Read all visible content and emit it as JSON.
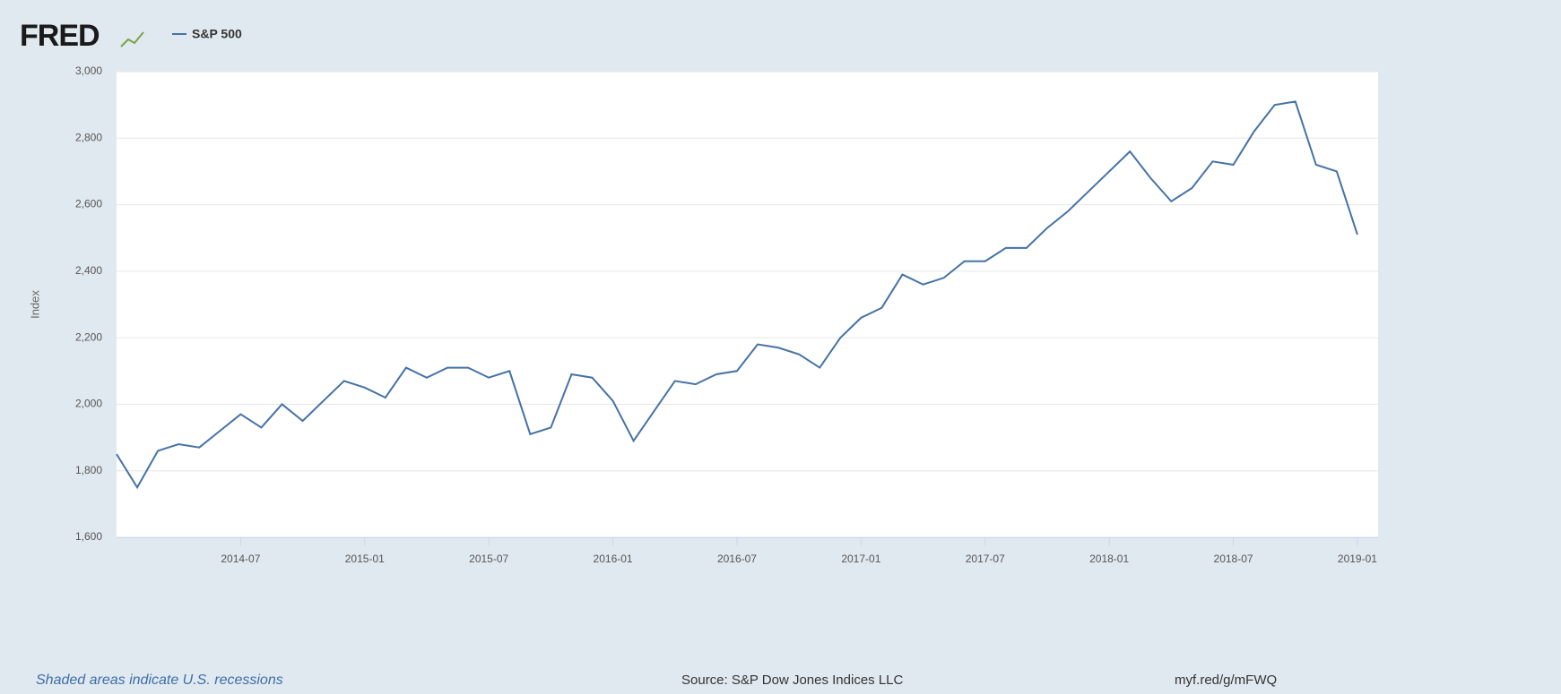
{
  "logo": "FRED",
  "chart_data": {
    "type": "line",
    "y_label": "Index",
    "x": [
      "2014-01",
      "2014-02",
      "2014-03",
      "2014-04",
      "2014-05",
      "2014-06",
      "2014-07",
      "2014-08",
      "2014-09",
      "2014-10",
      "2014-11",
      "2014-12",
      "2015-01",
      "2015-02",
      "2015-03",
      "2015-04",
      "2015-05",
      "2015-06",
      "2015-07",
      "2015-08",
      "2015-09",
      "2015-10",
      "2015-11",
      "2015-12",
      "2016-01",
      "2016-02",
      "2016-03",
      "2016-04",
      "2016-05",
      "2016-06",
      "2016-07",
      "2016-08",
      "2016-09",
      "2016-10",
      "2016-11",
      "2016-12",
      "2017-01",
      "2017-02",
      "2017-03",
      "2017-04",
      "2017-05",
      "2017-06",
      "2017-07",
      "2017-08",
      "2017-09",
      "2017-10",
      "2017-11",
      "2017-12",
      "2018-01",
      "2018-02",
      "2018-03",
      "2018-04",
      "2018-05",
      "2018-06",
      "2018-07",
      "2018-08",
      "2018-09",
      "2018-10",
      "2018-11",
      "2018-12",
      "2019-01"
    ],
    "series": [
      {
        "name": "S&P 500",
        "color": "#4572a7",
        "values": [
          1850,
          1750,
          1860,
          1880,
          1870,
          1920,
          1970,
          1930,
          2000,
          1950,
          2010,
          2070,
          2050,
          2020,
          2110,
          2080,
          2110,
          2110,
          2080,
          2100,
          1910,
          1930,
          2090,
          2080,
          2010,
          1890,
          1980,
          2070,
          2060,
          2090,
          2100,
          2180,
          2170,
          2150,
          2110,
          2200,
          2260,
          2290,
          2390,
          2360,
          2380,
          2430,
          2430,
          2470,
          2470,
          2530,
          2580,
          2640,
          2700,
          2760,
          2680,
          2610,
          2650,
          2730,
          2720,
          2820,
          2900,
          2910,
          2720,
          2700,
          2510
        ]
      }
    ],
    "xlim": [
      "2014-01",
      "2019-02"
    ],
    "xticks": [
      "2014-07",
      "2015-01",
      "2015-07",
      "2016-01",
      "2016-07",
      "2017-01",
      "2017-07",
      "2018-01",
      "2018-07",
      "2019-01"
    ],
    "ylim": [
      1600,
      3000
    ],
    "yticks": [
      {
        "value": 1600,
        "label": "1,600"
      },
      {
        "value": 1800,
        "label": "1,800"
      },
      {
        "value": 2000,
        "label": "2,000"
      },
      {
        "value": 2200,
        "label": "2,200"
      },
      {
        "value": 2400,
        "label": "2,400"
      },
      {
        "value": 2600,
        "label": "2,600"
      },
      {
        "value": 2800,
        "label": "2,800"
      },
      {
        "value": 3000,
        "label": "3,000"
      }
    ],
    "grid": true
  },
  "footer": {
    "note": "Shaded areas indicate U.S. recessions",
    "source": "Source: S&P Dow Jones Indices LLC",
    "link": "myf.red/g/mFWQ"
  }
}
